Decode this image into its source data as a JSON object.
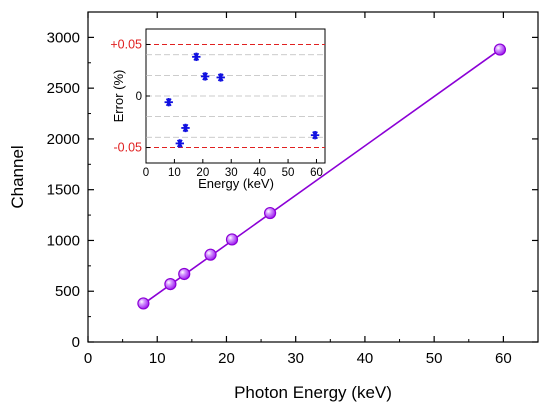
{
  "colors": {
    "main_series": "#8B00D6",
    "marker_fill": "#A020F0",
    "inset_marker": "#1010E0",
    "limit_line": "#E02020",
    "grid": "#BBBBBB"
  },
  "chart_data": [
    {
      "type": "scatter",
      "title": "",
      "xlabel": "Photon Energy (keV)",
      "ylabel": "Channel",
      "xlim": [
        0,
        65
      ],
      "ylim": [
        0,
        3250
      ],
      "xticks": [
        0,
        10,
        20,
        30,
        40,
        50,
        60
      ],
      "yticks": [
        0,
        500,
        1000,
        1500,
        2000,
        2500,
        3000
      ],
      "marker_icon": "sphere-marker",
      "fit_line": {
        "x": [
          8,
          59.5
        ],
        "y": [
          375,
          2880
        ]
      },
      "series": [
        {
          "x": [
            8.0,
            11.9,
            13.9,
            17.7,
            20.8,
            26.3,
            59.5
          ],
          "y": [
            380,
            570,
            670,
            860,
            1010,
            1270,
            2880
          ]
        }
      ]
    },
    {
      "type": "scatter",
      "title": "",
      "xlabel": "Energy (keV)",
      "ylabel": "Error (%)",
      "xlim": [
        0,
        63
      ],
      "ylim": [
        -0.065,
        0.065
      ],
      "xticks": [
        0,
        10,
        20,
        30,
        40,
        50,
        60
      ],
      "ytick_labels": [
        "+0.05",
        "0",
        "-0.05"
      ],
      "yticks": [
        0.05,
        0,
        -0.05
      ],
      "red_reference_lines": [
        0.05,
        -0.05
      ],
      "grid_lines_y": [
        0.04,
        0.02,
        0.0,
        -0.02,
        -0.04
      ],
      "marker_icon": "asterisk-marker",
      "series": [
        {
          "x": [
            8.0,
            11.9,
            13.9,
            17.7,
            20.8,
            26.3,
            59.5
          ],
          "y": [
            -0.006,
            -0.046,
            -0.031,
            0.038,
            0.019,
            0.018,
            -0.038
          ]
        }
      ]
    }
  ]
}
